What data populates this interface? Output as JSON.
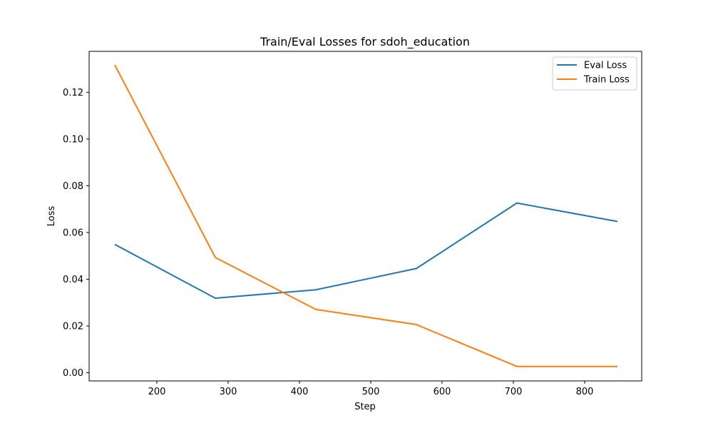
{
  "chart_data": {
    "type": "line",
    "title": "Train/Eval Losses for sdoh_education",
    "xlabel": "Step",
    "ylabel": "Loss",
    "xlim": [
      105,
      880
    ],
    "ylim": [
      -0.0035,
      0.1375
    ],
    "xticks": [
      200,
      300,
      400,
      500,
      600,
      700,
      800
    ],
    "yticks": [
      0.0,
      0.02,
      0.04,
      0.06,
      0.08,
      0.1,
      0.12
    ],
    "ytick_labels": [
      "0.00",
      "0.02",
      "0.04",
      "0.06",
      "0.08",
      "0.10",
      "0.12"
    ],
    "grid": false,
    "legend_position": "top-right",
    "series": [
      {
        "name": "Eval Loss",
        "color": "#1f77b4",
        "x": [
          141,
          282,
          423,
          564,
          705,
          846
        ],
        "y": [
          0.0549,
          0.0319,
          0.0355,
          0.0446,
          0.0726,
          0.0647
        ]
      },
      {
        "name": "Train Loss",
        "color": "#ff7f0e",
        "x": [
          141,
          282,
          423,
          564,
          705,
          846
        ],
        "y": [
          0.1317,
          0.0493,
          0.0271,
          0.0206,
          0.0027,
          0.0027
        ]
      }
    ]
  }
}
